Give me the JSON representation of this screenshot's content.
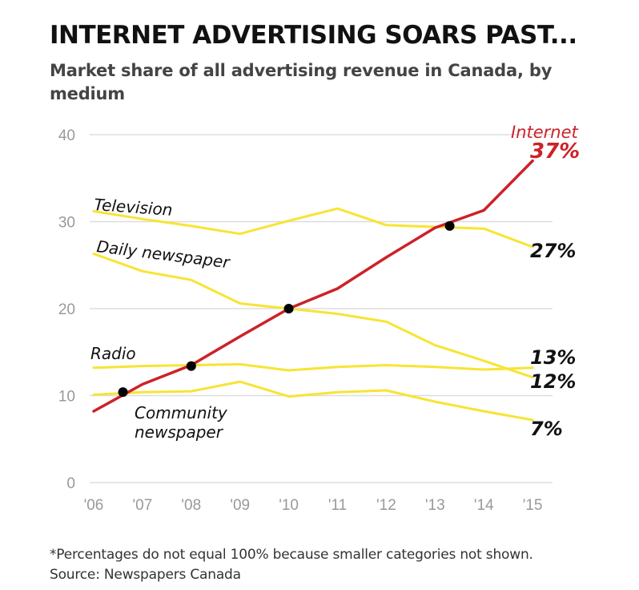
{
  "title": "INTERNET ADVERTISING SOARS PAST...",
  "subtitle": "Market share of all advertising revenue in Canada, by medium",
  "footnote": "*Percentages do not equal 100% because smaller categories not shown.",
  "source": "Source: Newspapers Canada",
  "colors": {
    "internet": "#cc2229",
    "others": "#f7e434",
    "grid": "#dddddd",
    "tick_text": "#999999",
    "marker": "#000000"
  },
  "chart_data": {
    "type": "line",
    "x": [
      2006,
      2007,
      2008,
      2009,
      2010,
      2011,
      2012,
      2013,
      2014,
      2015
    ],
    "x_tick_labels": [
      "'06",
      "'07",
      "'08",
      "'09",
      "'10",
      "'11",
      "'12",
      "'13",
      "'14",
      "'15"
    ],
    "y_ticks": [
      0,
      10,
      20,
      30,
      40
    ],
    "ylim": [
      0,
      40
    ],
    "grid": true,
    "series": [
      {
        "name": "Internet",
        "end_label": "37%",
        "highlight": true,
        "values": [
          8.2,
          11.3,
          13.5,
          16.8,
          20.0,
          22.3,
          25.9,
          29.3,
          31.3,
          37.0
        ]
      },
      {
        "name": "Television",
        "end_label": "27%",
        "values": [
          31.2,
          30.3,
          29.5,
          28.6,
          30.1,
          31.5,
          29.6,
          29.4,
          29.2,
          27.1
        ]
      },
      {
        "name": "Daily newspaper",
        "end_label": "12%",
        "values": [
          26.3,
          24.3,
          23.3,
          20.6,
          20.0,
          19.4,
          18.5,
          15.8,
          14.0,
          12.1
        ]
      },
      {
        "name": "Radio",
        "end_label": "13%",
        "values": [
          13.2,
          13.4,
          13.5,
          13.6,
          12.9,
          13.3,
          13.5,
          13.3,
          13.0,
          13.2
        ]
      },
      {
        "name": "Community newspaper",
        "end_label": "7%",
        "values": [
          10.1,
          10.4,
          10.5,
          11.6,
          9.9,
          10.4,
          10.6,
          9.3,
          8.2,
          7.2
        ]
      }
    ],
    "crossing_points": [
      {
        "x": 2006.6,
        "y": 10.4
      },
      {
        "x": 2008.0,
        "y": 13.4
      },
      {
        "x": 2010.0,
        "y": 20.0
      },
      {
        "x": 2013.3,
        "y": 29.5
      }
    ]
  }
}
